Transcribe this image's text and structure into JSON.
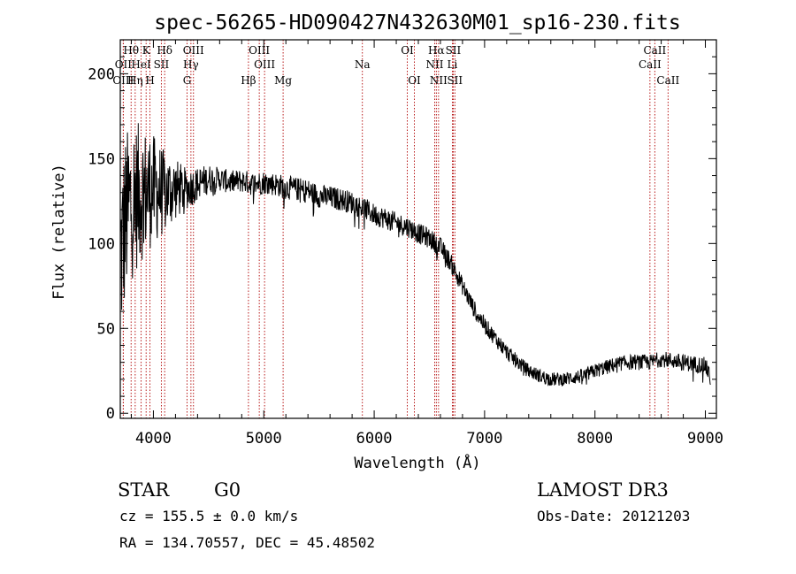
{
  "chart_data": {
    "type": "line",
    "title": "spec-56265-HD090427N432630M01_sp16-230.fits",
    "xlabel": "Wavelength (Å)",
    "ylabel": "Flux (relative)",
    "xlim": [
      3700,
      9100
    ],
    "ylim": [
      -3,
      220
    ],
    "x_ticks": [
      4000,
      5000,
      6000,
      7000,
      8000,
      9000
    ],
    "y_ticks": [
      0,
      50,
      100,
      150,
      200
    ],
    "grid": false,
    "series": [
      {
        "name": "flux",
        "continuum": [
          [
            3700,
            90
          ],
          [
            3750,
            115
          ],
          [
            3800,
            125
          ],
          [
            3850,
            128
          ],
          [
            3900,
            130
          ],
          [
            4000,
            132
          ],
          [
            4100,
            130
          ],
          [
            4200,
            132
          ],
          [
            4300,
            132
          ],
          [
            4400,
            135
          ],
          [
            4500,
            138
          ],
          [
            4600,
            138
          ],
          [
            4700,
            136
          ],
          [
            4800,
            137
          ],
          [
            4900,
            135
          ],
          [
            5000,
            136
          ],
          [
            5100,
            135
          ],
          [
            5200,
            133
          ],
          [
            5300,
            132
          ],
          [
            5400,
            131
          ],
          [
            5500,
            128
          ],
          [
            5600,
            127
          ],
          [
            5700,
            126
          ],
          [
            5800,
            124
          ],
          [
            5900,
            121
          ],
          [
            6000,
            117
          ],
          [
            6100,
            115
          ],
          [
            6200,
            112
          ],
          [
            6300,
            110
          ],
          [
            6400,
            106
          ],
          [
            6500,
            103
          ],
          [
            6600,
            98
          ],
          [
            6700,
            88
          ],
          [
            6800,
            75
          ],
          [
            6900,
            62
          ],
          [
            7000,
            52
          ],
          [
            7100,
            44
          ],
          [
            7200,
            36
          ],
          [
            7300,
            30
          ],
          [
            7400,
            25
          ],
          [
            7500,
            22
          ],
          [
            7600,
            20
          ],
          [
            7700,
            20
          ],
          [
            7800,
            21
          ],
          [
            7900,
            22
          ],
          [
            8000,
            25
          ],
          [
            8100,
            27
          ],
          [
            8200,
            29
          ],
          [
            8300,
            30
          ],
          [
            8400,
            30
          ],
          [
            8500,
            30
          ],
          [
            8600,
            32
          ],
          [
            8700,
            31
          ],
          [
            8800,
            30
          ],
          [
            8900,
            29
          ],
          [
            9000,
            28
          ],
          [
            9050,
            20
          ]
        ],
        "noise_amplitude": [
          [
            3700,
            55
          ],
          [
            3900,
            40
          ],
          [
            4100,
            25
          ],
          [
            4300,
            12
          ],
          [
            4600,
            7
          ],
          [
            5500,
            7
          ],
          [
            6500,
            6
          ],
          [
            7500,
            4
          ],
          [
            9000,
            5
          ]
        ]
      }
    ],
    "spectral_lines": [
      {
        "label": "Hθ",
        "wavelength": 3798,
        "row": 0
      },
      {
        "label": "K",
        "wavelength": 3934,
        "row": 0
      },
      {
        "label": "Hδ",
        "wavelength": 4102,
        "row": 0
      },
      {
        "label": "OIII",
        "wavelength": 4363,
        "row": 0
      },
      {
        "label": "OIII",
        "wavelength": 4959,
        "row": 0
      },
      {
        "label": "OI",
        "wavelength": 6300,
        "row": 0
      },
      {
        "label": "Hα",
        "wavelength": 6563,
        "row": 0
      },
      {
        "label": "SII",
        "wavelength": 6716,
        "row": 0
      },
      {
        "label": "CaII",
        "wavelength": 8542,
        "row": 0
      },
      {
        "label": "OII",
        "wavelength": 3727,
        "row": 1
      },
      {
        "label": "HeI",
        "wavelength": 3889,
        "row": 1
      },
      {
        "label": "SII",
        "wavelength": 4072,
        "row": 1
      },
      {
        "label": "Hγ",
        "wavelength": 4340,
        "row": 1
      },
      {
        "label": "OIII",
        "wavelength": 5007,
        "row": 1
      },
      {
        "label": "Na",
        "wavelength": 5893,
        "row": 1
      },
      {
        "label": "NII",
        "wavelength": 6548,
        "row": 1
      },
      {
        "label": "Li",
        "wavelength": 6708,
        "row": 1
      },
      {
        "label": "CaII",
        "wavelength": 8498,
        "row": 1
      },
      {
        "label": "OIII",
        "wavelength": 3727,
        "row": 2
      },
      {
        "label": "Hη",
        "wavelength": 3835,
        "row": 2
      },
      {
        "label": "H",
        "wavelength": 3969,
        "row": 2
      },
      {
        "label": "G",
        "wavelength": 4305,
        "row": 2
      },
      {
        "label": "Hβ",
        "wavelength": 4861,
        "row": 2
      },
      {
        "label": "Mg",
        "wavelength": 5175,
        "row": 2
      },
      {
        "label": "OI",
        "wavelength": 6364,
        "row": 2
      },
      {
        "label": "NII",
        "wavelength": 6583,
        "row": 2
      },
      {
        "label": "SII",
        "wavelength": 6731,
        "row": 2
      },
      {
        "label": "CaII",
        "wavelength": 8662,
        "row": 2
      }
    ]
  },
  "info": {
    "object_class": "STAR",
    "subclass": "G0",
    "survey": "LAMOST DR3",
    "cz": "cz = 155.5 ± 0.0 km/s",
    "obs_date": "Obs-Date: 20121203",
    "coords": "RA = 134.70557, DEC =  45.48502"
  }
}
